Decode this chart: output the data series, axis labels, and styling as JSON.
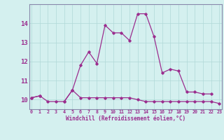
{
  "xlabel": "Windchill (Refroidissement éolien,°C)",
  "background_color": "#d4f0ef",
  "line_color": "#9b2d8e",
  "spine_color": "#8888aa",
  "grid_color": "#b0d8d8",
  "x_values": [
    0,
    1,
    2,
    3,
    4,
    5,
    6,
    7,
    8,
    9,
    10,
    11,
    12,
    13,
    14,
    15,
    16,
    17,
    18,
    19,
    20,
    21,
    22,
    23
  ],
  "line1_y": [
    10.1,
    10.2,
    9.9,
    9.9,
    9.9,
    10.5,
    10.1,
    10.1,
    10.1,
    10.1,
    10.1,
    10.1,
    10.1,
    10.0,
    9.9,
    9.9,
    9.9,
    9.9,
    9.9,
    9.9,
    9.9,
    9.9,
    9.9,
    9.8
  ],
  "line2_y": [
    10.1,
    10.2,
    null,
    null,
    9.9,
    10.5,
    11.8,
    12.5,
    11.9,
    13.9,
    13.5,
    13.5,
    13.1,
    14.5,
    14.5,
    13.3,
    11.4,
    11.6,
    11.5,
    10.4,
    10.4,
    10.3,
    10.3,
    null
  ],
  "ylim": [
    9.5,
    15.0
  ],
  "yticks": [
    10,
    11,
    12,
    13,
    14
  ],
  "xticks": [
    0,
    1,
    2,
    3,
    4,
    5,
    6,
    7,
    8,
    9,
    10,
    11,
    12,
    13,
    14,
    15,
    16,
    17,
    18,
    19,
    20,
    21,
    22,
    23
  ],
  "xlim": [
    -0.3,
    23.3
  ]
}
